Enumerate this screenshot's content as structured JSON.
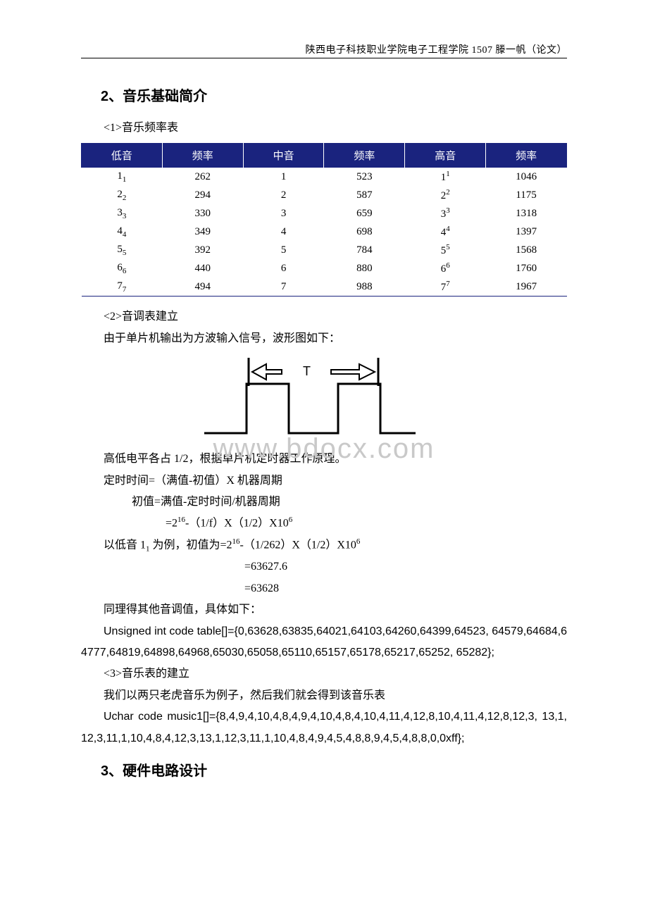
{
  "header": {
    "text": "陕西电子科技职业学院电子工程学院 1507 滕一帆（论文）"
  },
  "section2": {
    "title": "2、音乐基础简介",
    "sub1": "<1>音乐频率表",
    "table": {
      "headers": [
        "低音",
        "频率",
        "中音",
        "频率",
        "高音",
        "频率"
      ],
      "header_bg": "#1a237e",
      "header_fg": "#ffffff",
      "border_color": "#1a237e",
      "rows": [
        {
          "low": "1",
          "lowSub": "1",
          "lf": "262",
          "mid": "1",
          "mf": "523",
          "hi": "1",
          "hiSup": "1",
          "hf": "1046"
        },
        {
          "low": "2",
          "lowSub": "2",
          "lf": "294",
          "mid": "2",
          "mf": "587",
          "hi": "2",
          "hiSup": "2",
          "hf": "1175"
        },
        {
          "low": "3",
          "lowSub": "3",
          "lf": "330",
          "mid": "3",
          "mf": "659",
          "hi": "3",
          "hiSup": "3",
          "hf": "1318"
        },
        {
          "low": "4",
          "lowSub": "4",
          "lf": "349",
          "mid": "4",
          "mf": "698",
          "hi": "4",
          "hiSup": "4",
          "hf": "1397"
        },
        {
          "low": "5",
          "lowSub": "5",
          "lf": "392",
          "mid": "5",
          "mf": "784",
          "hi": "5",
          "hiSup": "5",
          "hf": "1568"
        },
        {
          "low": "6",
          "lowSub": "6",
          "lf": "440",
          "mid": "6",
          "mf": "880",
          "hi": "6",
          "hiSup": "6",
          "hf": "1760"
        },
        {
          "low": "7",
          "lowSub": "7",
          "lf": "494",
          "mid": "7",
          "mf": "988",
          "hi": "7",
          "hiSup": "7",
          "hf": "1967"
        }
      ]
    },
    "sub2": "<2>音调表建立",
    "p_wave_intro": "由于单片机输出为方波输入信号，波形图如下：",
    "wave": {
      "label_T": "T",
      "stroke": "#000000",
      "stroke_width": 2
    },
    "p_duty": "高低电平各占 1/2，根据单片机定时器工作原理。",
    "f_timer": "定时时间=（满值-初值）X 机器周期",
    "f_init1": "初值=满值-定时时间/机器周期",
    "f_init2_pre": "=2",
    "f_init2_exp": "16",
    "f_init2_post": "-（1/f）X（1/2）X10",
    "f_init2_exp2": "6",
    "p_example_pre": "以低音 1",
    "p_example_sub": "1",
    "p_example_mid": " 为例，初值为=2",
    "p_example_exp": "16",
    "p_example_mid2": "-（1/262）X（1/2）X10",
    "p_example_exp2": "6",
    "p_calc1": "=63627.6",
    "p_calc2": "=63628",
    "p_same": "同理得其他音调值，具体如下：",
    "code_table": "Unsigned    int    code    table[]={0,63628,63835,64021,64103,64260,64399,64523, 64579,64684,64777,64819,64898,64968,65030,65058,65110,65157,65178,65217,65252, 65282};",
    "sub3": "<3>音乐表的建立",
    "p_music_intro": "我们以两只老虎音乐为例子，然后我们就会得到该音乐表",
    "code_music": "Uchar code music1[]={8,4,9,4,10,4,8,4,9,4,10,4,8,4,10,4,11,4,12,8,10,4,11,4,12,8,12,3, 13,1,12,3,11,1,10,4,8,4,12,3,13,1,12,3,11,1,10,4,8,4,9,4,5,4,8,8,9,4,5,4,8,8,0,0xff};"
  },
  "section3": {
    "title": "3、硬件电路设计"
  },
  "watermark": "www.bdocx.com"
}
